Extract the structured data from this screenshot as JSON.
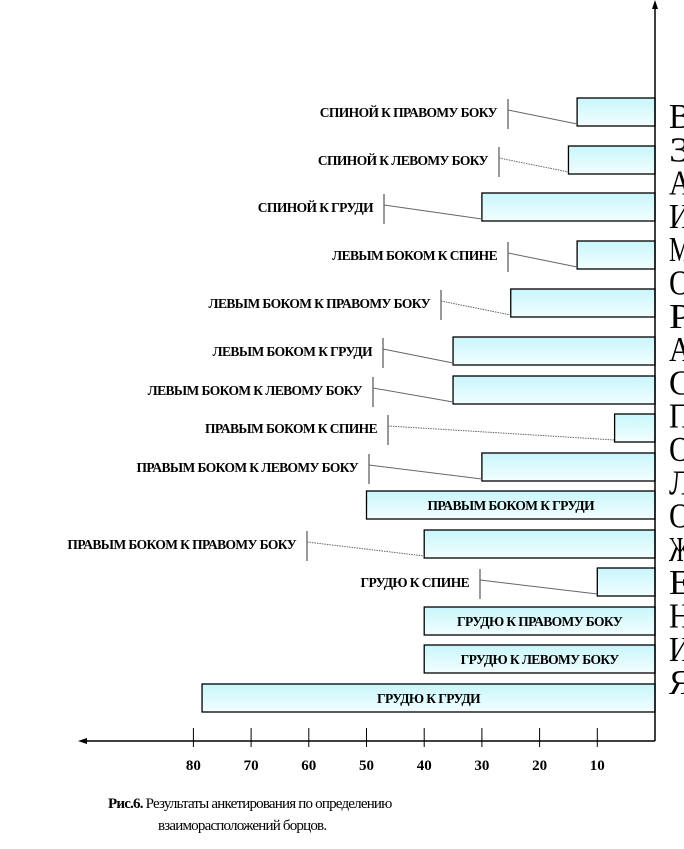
{
  "chart_data": {
    "type": "bar",
    "orientation": "horizontal",
    "x_reversed": true,
    "categories": [
      "СПИНОЙ К ПРАВОМУ БОКУ",
      "СПИНОЙ К ЛЕВОМУ БОКУ",
      "СПИНОЙ К ГРУДИ",
      "ЛЕВЫМ БОКОМ К СПИНЕ",
      "ЛЕВЫМ БОКОМ К ПРАВОМУ БОКУ",
      "ЛЕВЫМ БОКОМ К ГРУДИ",
      "ЛЕВЫМ БОКОМ К ЛЕВОМУ БОКУ",
      "ПРАВЫМ БОКОМ К СПИНЕ",
      "ПРАВЫМ БОКОМ К ЛЕВОМУ БОКУ",
      "ПРАВЫМ БОКОМ К ГРУДИ",
      "ПРАВЫМ БОКОМ К ПРАВОМУ БОКУ",
      "ГРУДЮ К СПИНЕ",
      "ГРУДЮ К ПРАВОМУ  БОКУ",
      "ГРУДЮ К ЛЕВОМУ  БОКУ",
      "ГРУДЮ К ГРУДИ"
    ],
    "values": [
      13.5,
      15,
      30,
      13.5,
      25,
      35,
      35,
      7,
      30,
      50,
      40,
      10,
      40,
      40,
      78.5
    ],
    "xlim": [
      0,
      80
    ],
    "x_ticks": [
      "80",
      "70",
      "60",
      "50",
      "40",
      "30",
      "20",
      "10"
    ],
    "x_tick_values": [
      80,
      70,
      60,
      50,
      40,
      30,
      20,
      10
    ],
    "ylabel": "ВЗАИМОРАСПОЛОЖЕНИЯ",
    "grid": false,
    "bar_color": "#ccf7fb"
  },
  "caption": {
    "prefix": "Рис.6.",
    "line1": " Результаты анкетирования по определению",
    "line2": "взаиморасположений борцов."
  }
}
